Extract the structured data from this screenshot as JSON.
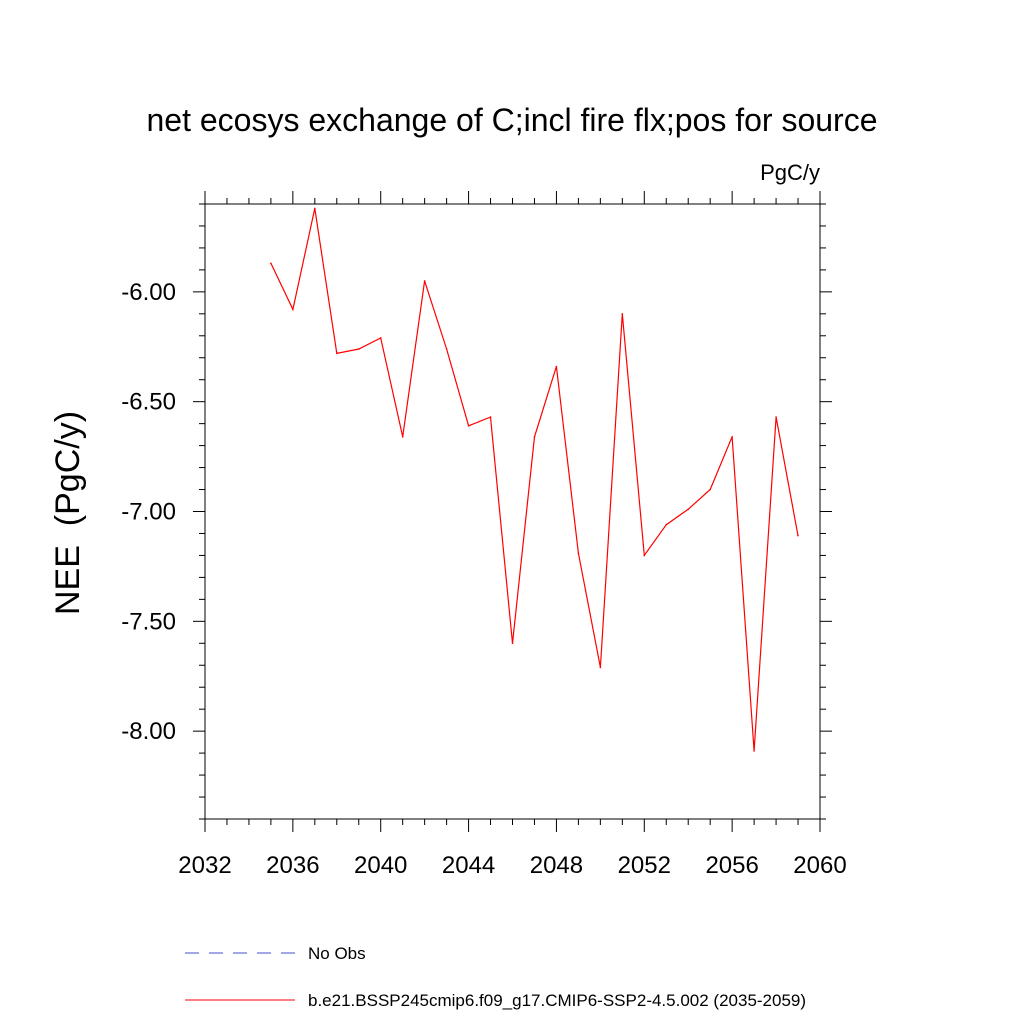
{
  "chart_data": {
    "type": "line",
    "title": "net ecosys exchange of C;incl fire flx;pos for source",
    "units_label": "PgC/y",
    "xlabel": "",
    "ylabel": "NEE  (PgC/y)",
    "xlim": [
      2032,
      2060
    ],
    "ylim": [
      -8.4,
      -5.6
    ],
    "x_ticks": [
      2032,
      2036,
      2040,
      2044,
      2048,
      2052,
      2056,
      2060
    ],
    "x_tick_labels": [
      "2032",
      "2036",
      "2040",
      "2044",
      "2048",
      "2052",
      "2056",
      "2060"
    ],
    "y_ticks": [
      -8.0,
      -7.5,
      -7.0,
      -6.5,
      -6.0
    ],
    "y_tick_labels": [
      "-8.00",
      "-7.50",
      "-7.00",
      "-6.50",
      "-6.00"
    ],
    "grid": false,
    "legend_position": "bottom",
    "series": [
      {
        "name": "No Obs",
        "color": "#4a4ad0",
        "style": "dashed",
        "x": [],
        "values": []
      },
      {
        "name": "b.e21.BSSP245cmip6.f09_g17.CMIP6-SSP2-4.5.002 (2035-2059)",
        "color": "#ff0000",
        "style": "solid",
        "x": [
          2035,
          2036,
          2037,
          2038,
          2039,
          2040,
          2041,
          2042,
          2043,
          2044,
          2045,
          2046,
          2047,
          2048,
          2049,
          2050,
          2051,
          2052,
          2053,
          2054,
          2055,
          2056,
          2057,
          2058,
          2059
        ],
        "values": [
          -5.87,
          -6.08,
          -5.62,
          -6.28,
          -6.26,
          -6.21,
          -6.66,
          -5.95,
          -6.26,
          -6.61,
          -6.57,
          -7.6,
          -6.66,
          -6.34,
          -7.19,
          -7.71,
          -6.1,
          -7.2,
          -7.06,
          -6.99,
          -6.9,
          -6.66,
          -8.09,
          -6.57,
          -7.11
        ]
      }
    ]
  }
}
